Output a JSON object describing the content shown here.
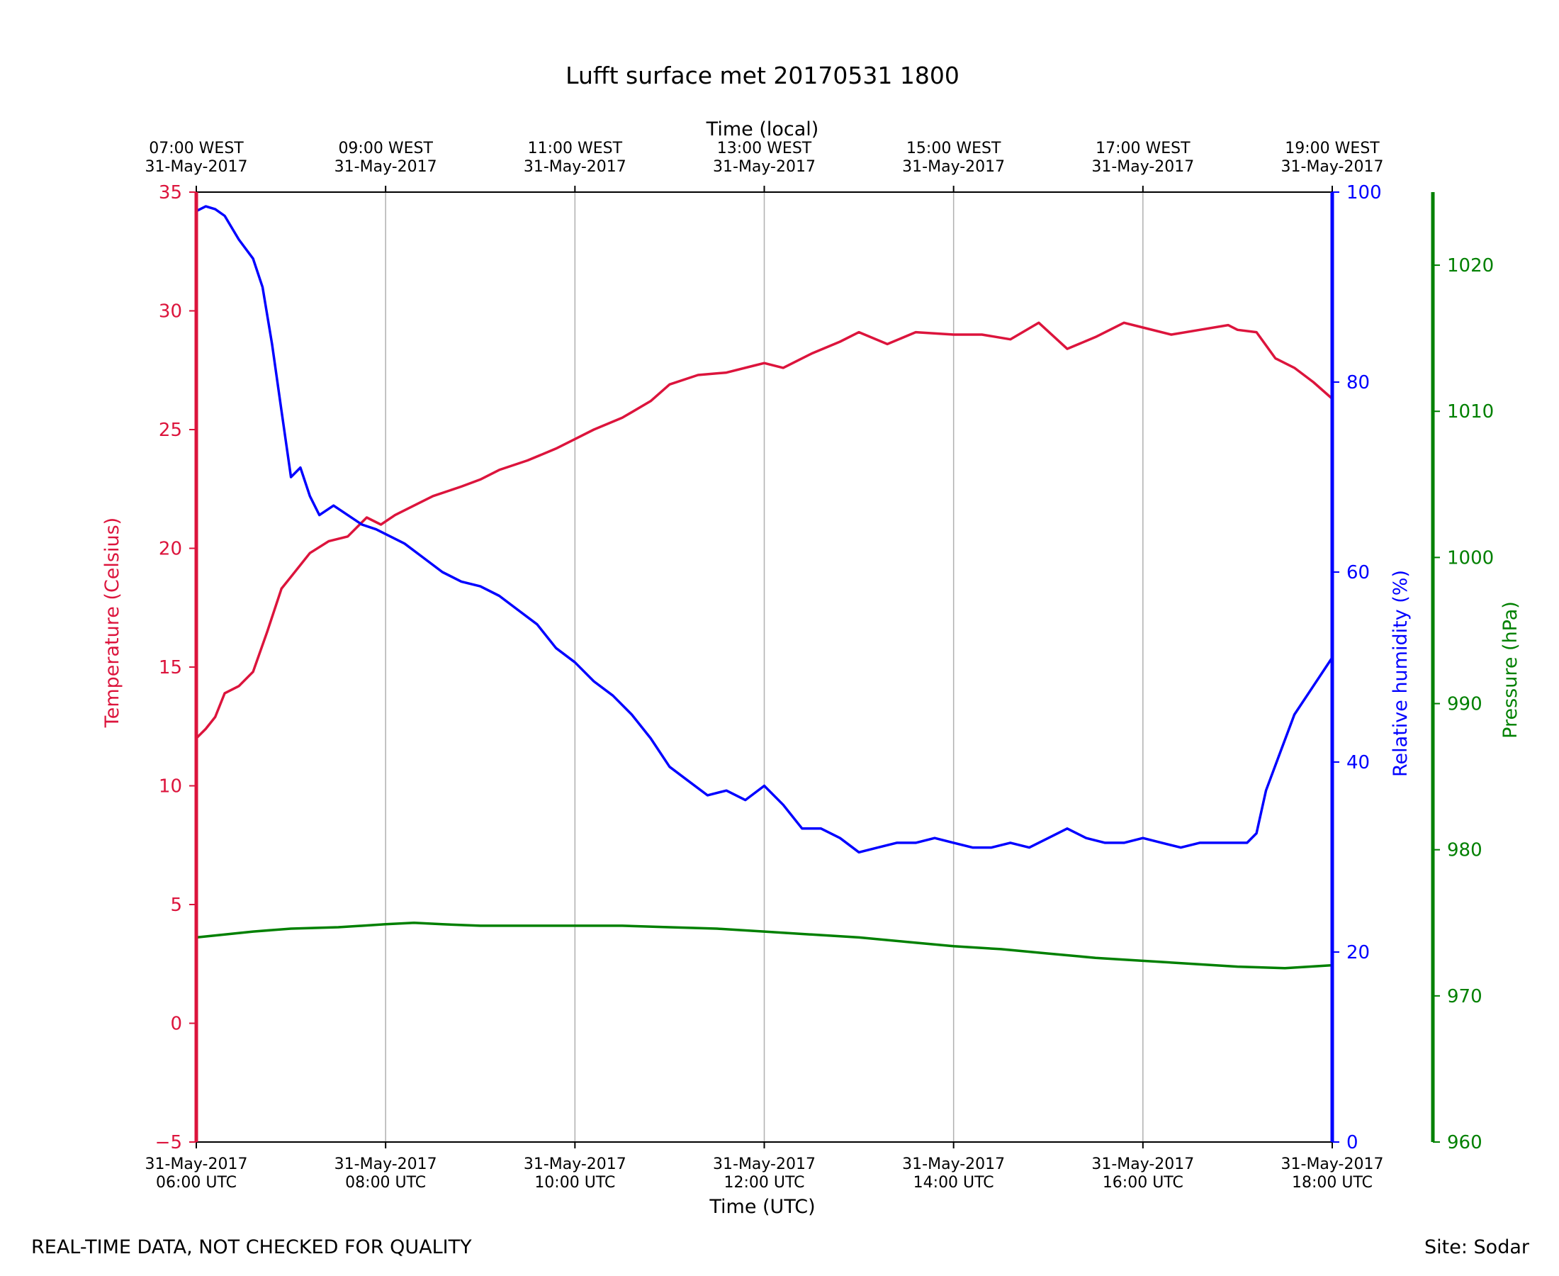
{
  "footer": {
    "note": "REAL-TIME DATA, NOT CHECKED FOR QUALITY",
    "site": "Site: Sodar"
  },
  "colors": {
    "temperature": "#dc143c",
    "humidity": "#0000ff",
    "pressure": "#008000",
    "grid": "#b0b0b0",
    "axis": "#000000"
  },
  "chart_data": {
    "type": "line",
    "title": "Lufft surface met 20170531 1800",
    "xlabel": "Time (UTC)",
    "xlabel_top": "Time (local)",
    "x_range_hours_utc": [
      6,
      18
    ],
    "x_ticks": [
      {
        "hour": 6,
        "utc_date": "31-May-2017",
        "utc_time": "06:00 UTC",
        "local_time": "07:00 WEST",
        "local_date": "31-May-2017"
      },
      {
        "hour": 8,
        "utc_date": "31-May-2017",
        "utc_time": "08:00 UTC",
        "local_time": "09:00 WEST",
        "local_date": "31-May-2017"
      },
      {
        "hour": 10,
        "utc_date": "31-May-2017",
        "utc_time": "10:00 UTC",
        "local_time": "11:00 WEST",
        "local_date": "31-May-2017"
      },
      {
        "hour": 12,
        "utc_date": "31-May-2017",
        "utc_time": "12:00 UTC",
        "local_time": "13:00 WEST",
        "local_date": "31-May-2017"
      },
      {
        "hour": 14,
        "utc_date": "31-May-2017",
        "utc_time": "14:00 UTC",
        "local_time": "15:00 WEST",
        "local_date": "31-May-2017"
      },
      {
        "hour": 16,
        "utc_date": "31-May-2017",
        "utc_time": "16:00 UTC",
        "local_time": "17:00 WEST",
        "local_date": "31-May-2017"
      },
      {
        "hour": 18,
        "utc_date": "31-May-2017",
        "utc_time": "18:00 UTC",
        "local_time": "19:00 WEST",
        "local_date": "31-May-2017"
      }
    ],
    "grid": "vertical at x ticks",
    "axes": {
      "temperature": {
        "label": "Temperature (Celsius)",
        "range": [
          -5,
          35
        ],
        "ticks": [
          -5,
          0,
          5,
          10,
          15,
          20,
          25,
          30,
          35
        ],
        "side": "left"
      },
      "humidity": {
        "label": "Relative humidity (%)",
        "range": [
          0,
          100
        ],
        "ticks": [
          0,
          20,
          40,
          60,
          80,
          100
        ],
        "side": "right"
      },
      "pressure": {
        "label": "Pressure (hPa)",
        "range": [
          960,
          1025
        ],
        "ticks": [
          960,
          970,
          980,
          990,
          1000,
          1010,
          1020
        ],
        "side": "right-outer"
      }
    },
    "series": [
      {
        "name": "Temperature",
        "axis": "temperature",
        "color_key": "temperature",
        "hours": [
          6.0,
          6.1,
          6.2,
          6.3,
          6.45,
          6.6,
          6.75,
          6.9,
          7.0,
          7.2,
          7.4,
          7.6,
          7.8,
          7.95,
          8.1,
          8.3,
          8.5,
          8.8,
          9.0,
          9.2,
          9.5,
          9.8,
          10.0,
          10.2,
          10.5,
          10.8,
          11.0,
          11.3,
          11.6,
          11.9,
          12.0,
          12.2,
          12.5,
          12.8,
          13.0,
          13.3,
          13.6,
          14.0,
          14.3,
          14.6,
          14.9,
          15.2,
          15.5,
          15.8,
          16.0,
          16.3,
          16.6,
          16.9,
          17.0,
          17.2,
          17.4,
          17.6,
          17.8,
          18.0
        ],
        "values": [
          12.0,
          12.4,
          12.9,
          13.9,
          14.2,
          14.8,
          16.5,
          18.3,
          18.8,
          19.8,
          20.3,
          20.5,
          21.3,
          21.0,
          21.4,
          21.8,
          22.2,
          22.6,
          22.9,
          23.3,
          23.7,
          24.2,
          24.6,
          25.0,
          25.5,
          26.2,
          26.9,
          27.3,
          27.4,
          27.7,
          27.8,
          27.6,
          28.2,
          28.7,
          29.1,
          28.6,
          29.1,
          29.0,
          29.0,
          28.8,
          29.5,
          28.4,
          28.9,
          29.5,
          29.3,
          29.0,
          29.2,
          29.4,
          29.2,
          29.1,
          28.0,
          27.6,
          27.0,
          26.3
        ]
      },
      {
        "name": "Relative humidity",
        "axis": "humidity",
        "color_key": "humidity",
        "hours": [
          6.0,
          6.1,
          6.2,
          6.3,
          6.45,
          6.6,
          6.7,
          6.8,
          6.9,
          7.0,
          7.1,
          7.2,
          7.3,
          7.45,
          7.6,
          7.75,
          7.9,
          8.0,
          8.2,
          8.4,
          8.6,
          8.8,
          9.0,
          9.2,
          9.4,
          9.6,
          9.8,
          10.0,
          10.2,
          10.4,
          10.6,
          10.8,
          11.0,
          11.2,
          11.4,
          11.6,
          11.8,
          12.0,
          12.2,
          12.4,
          12.6,
          12.8,
          13.0,
          13.2,
          13.4,
          13.6,
          13.8,
          14.0,
          14.2,
          14.4,
          14.6,
          14.8,
          15.0,
          15.2,
          15.4,
          15.6,
          15.8,
          16.0,
          16.2,
          16.4,
          16.6,
          16.8,
          17.0,
          17.1,
          17.2,
          17.3,
          17.45,
          17.6,
          17.8,
          18.0
        ],
        "values": [
          98.0,
          98.5,
          98.2,
          97.5,
          95.0,
          93.0,
          90.0,
          84.0,
          77.0,
          70.0,
          71.0,
          68.0,
          66.0,
          67.0,
          66.0,
          65.0,
          64.5,
          64.0,
          63.0,
          61.5,
          60.0,
          59.0,
          58.5,
          57.5,
          56.0,
          54.5,
          52.0,
          50.5,
          48.5,
          47.0,
          45.0,
          42.5,
          39.5,
          38.0,
          36.5,
          37.0,
          36.0,
          37.5,
          35.5,
          33.0,
          33.0,
          32.0,
          30.5,
          31.0,
          31.5,
          31.5,
          32.0,
          31.5,
          31.0,
          31.0,
          31.5,
          31.0,
          32.0,
          33.0,
          32.0,
          31.5,
          31.5,
          32.0,
          31.5,
          31.0,
          31.5,
          31.5,
          31.5,
          31.5,
          32.5,
          37.0,
          41.0,
          45.0,
          48.0,
          51.0
        ]
      },
      {
        "name": "Pressure",
        "axis": "pressure",
        "color_key": "pressure",
        "hours": [
          6.0,
          6.3,
          6.6,
          7.0,
          7.5,
          8.0,
          8.3,
          8.6,
          9.0,
          9.5,
          10.0,
          10.5,
          11.0,
          11.5,
          12.0,
          12.5,
          13.0,
          13.5,
          14.0,
          14.5,
          15.0,
          15.5,
          16.0,
          16.5,
          17.0,
          17.5,
          18.0
        ],
        "values": [
          974.0,
          974.2,
          974.4,
          974.6,
          974.7,
          974.9,
          975.0,
          974.9,
          974.8,
          974.8,
          974.8,
          974.8,
          974.7,
          974.6,
          974.4,
          974.2,
          974.0,
          973.7,
          973.4,
          973.2,
          972.9,
          972.6,
          972.4,
          972.2,
          972.0,
          971.9,
          972.1
        ]
      }
    ]
  }
}
